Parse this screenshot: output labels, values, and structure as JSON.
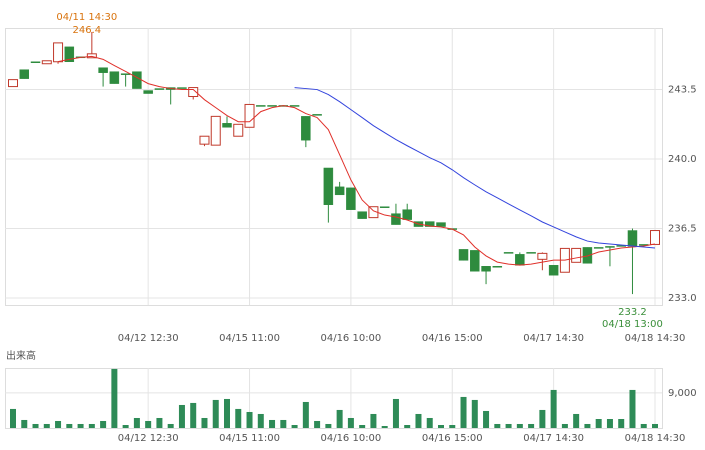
{
  "chart_data": [
    {
      "type": "candlestick",
      "categories": [
        null,
        null,
        null,
        null,
        null,
        null,
        null,
        null,
        null,
        null,
        null,
        null,
        "04/12 12:30",
        null,
        null,
        null,
        null,
        null,
        null,
        null,
        null,
        "04/15 11:00",
        null,
        null,
        null,
        null,
        null,
        null,
        null,
        null,
        "04/16 10:00",
        null,
        null,
        null,
        null,
        null,
        null,
        null,
        null,
        "04/16 15:00",
        null,
        null,
        null,
        null,
        null,
        null,
        null,
        null,
        "04/17 14:30",
        null,
        null,
        null,
        null,
        null,
        null,
        null,
        null,
        "04/18 14:30"
      ],
      "open": [
        243.65,
        244.5,
        244.9,
        244.8,
        244.9,
        245.65,
        245.15,
        245.1,
        244.6,
        244.4,
        244.3,
        244.4,
        243.45,
        243.55,
        243.6,
        243.6,
        243.15,
        240.75,
        240.7,
        241.8,
        241.15,
        241.6,
        242.7,
        242.7,
        242.7,
        242.7,
        242.15,
        242.25,
        239.55,
        238.6,
        238.55,
        237.35,
        237.05,
        237.6,
        237.25,
        237.45,
        236.85,
        236.85,
        236.8,
        236.5,
        235.45,
        235.4,
        234.6,
        234.6,
        235.3,
        235.2,
        235.3,
        234.95,
        234.65,
        234.3,
        234.8,
        235.55,
        235.55,
        235.6,
        235.65,
        236.4,
        235.7,
        235.7
      ],
      "high": [
        244.0,
        244.5,
        244.9,
        244.95,
        245.85,
        245.65,
        245.15,
        246.4,
        244.6,
        244.4,
        244.3,
        244.4,
        243.45,
        243.55,
        243.6,
        243.6,
        243.6,
        241.15,
        242.15,
        242.15,
        241.75,
        242.75,
        242.7,
        242.7,
        242.7,
        242.7,
        242.15,
        242.25,
        239.55,
        238.85,
        238.55,
        237.35,
        237.6,
        237.6,
        237.75,
        237.75,
        236.85,
        236.85,
        236.8,
        236.5,
        235.45,
        235.4,
        234.6,
        234.6,
        235.3,
        235.3,
        235.3,
        235.3,
        234.65,
        235.5,
        235.5,
        235.55,
        235.55,
        235.6,
        235.65,
        236.5,
        235.7,
        236.4
      ],
      "low": [
        243.65,
        244.05,
        244.9,
        244.8,
        244.8,
        244.9,
        245.15,
        245.1,
        243.65,
        243.8,
        243.65,
        243.55,
        243.3,
        243.55,
        242.75,
        243.6,
        243.0,
        240.65,
        240.7,
        241.6,
        241.15,
        241.6,
        242.7,
        242.7,
        242.7,
        242.7,
        240.6,
        242.25,
        236.8,
        238.2,
        237.45,
        237.0,
        237.05,
        237.6,
        236.7,
        236.95,
        236.6,
        236.6,
        236.6,
        236.5,
        234.9,
        234.35,
        233.7,
        234.6,
        235.3,
        234.65,
        235.3,
        234.4,
        234.15,
        234.3,
        234.8,
        234.75,
        235.55,
        234.6,
        235.65,
        233.2,
        235.7,
        235.7
      ],
      "close": [
        244.0,
        244.05,
        244.9,
        244.95,
        245.85,
        244.9,
        245.15,
        245.3,
        244.35,
        243.8,
        244.3,
        243.55,
        243.3,
        243.55,
        243.5,
        243.6,
        243.6,
        241.15,
        242.15,
        241.6,
        241.75,
        242.75,
        242.7,
        242.7,
        242.7,
        242.7,
        240.95,
        242.25,
        237.7,
        238.2,
        237.45,
        237.0,
        237.6,
        237.6,
        236.7,
        236.95,
        236.6,
        236.6,
        236.6,
        236.5,
        234.9,
        234.35,
        234.35,
        234.6,
        235.3,
        234.65,
        235.3,
        235.25,
        234.15,
        235.5,
        235.5,
        234.75,
        235.55,
        235.6,
        235.65,
        235.6,
        235.7,
        236.4
      ],
      "up_color": "#c0392b",
      "down_color": "#2e8b3e",
      "series": [
        {
          "color": "#e0302a",
          "values": [
            null,
            null,
            null,
            null,
            244.91,
            245.02,
            245.12,
            245.17,
            245.02,
            244.71,
            244.41,
            244.11,
            243.8,
            243.65,
            243.55,
            243.5,
            243.5,
            242.99,
            242.59,
            242.19,
            241.88,
            241.88,
            242.39,
            242.59,
            242.69,
            242.59,
            242.29,
            242.09,
            241.48,
            240.22,
            238.95,
            237.94,
            237.39,
            237.18,
            237.08,
            236.93,
            236.73,
            236.63,
            236.58,
            236.47,
            236.18,
            235.57,
            235.12,
            234.81,
            234.71,
            234.66,
            234.71,
            234.81,
            234.91,
            234.91,
            235.02,
            235.12,
            235.32,
            235.42,
            235.52,
            235.57,
            235.62,
            235.72
          ]
        },
        {
          "color": "#3344dd",
          "values": [
            null,
            null,
            null,
            null,
            null,
            null,
            null,
            null,
            null,
            null,
            null,
            null,
            null,
            null,
            null,
            null,
            null,
            null,
            null,
            null,
            null,
            null,
            null,
            null,
            null,
            243.6,
            243.55,
            243.5,
            243.25,
            242.89,
            242.49,
            242.09,
            241.68,
            241.33,
            240.98,
            240.67,
            240.37,
            240.07,
            239.81,
            239.46,
            239.06,
            238.7,
            238.35,
            238.05,
            237.74,
            237.44,
            237.14,
            236.83,
            236.58,
            236.33,
            236.08,
            235.87,
            235.77,
            235.72,
            235.67,
            235.62,
            235.57,
            235.52
          ]
        }
      ],
      "high_label": {
        "time": "04/11 14:30",
        "value": 246.4
      },
      "low_label": {
        "time": "04/18 13:00",
        "value": 233.2
      },
      "ylim": [
        232.65,
        246.6
      ],
      "yticks": [
        {
          "value": 233,
          "label": "233.0"
        },
        236.5,
        {
          "value": 240,
          "label": "240.0"
        },
        243.5
      ],
      "grid": true
    },
    {
      "type": "bar",
      "title": "出来高",
      "color": "#2e8b57",
      "categories": [
        null,
        null,
        null,
        null,
        null,
        null,
        null,
        null,
        null,
        null,
        null,
        null,
        "04/12 12:30",
        null,
        null,
        null,
        null,
        null,
        null,
        null,
        null,
        "04/15 11:00",
        null,
        null,
        null,
        null,
        null,
        null,
        null,
        null,
        "04/16 10:00",
        null,
        null,
        null,
        null,
        null,
        null,
        null,
        null,
        "04/16 15:00",
        null,
        null,
        null,
        null,
        null,
        null,
        null,
        null,
        "04/17 14:30",
        null,
        null,
        null,
        null,
        null,
        null,
        null,
        null,
        "04/18 14:30"
      ],
      "values": [
        4890,
        2060,
        1030,
        1030,
        1800,
        1030,
        1030,
        1030,
        1800,
        15160,
        770,
        2570,
        1800,
        2570,
        1030,
        5910,
        6430,
        2570,
        7200,
        7450,
        4890,
        4110,
        3600,
        2060,
        2060,
        770,
        6680,
        1800,
        1030,
        4630,
        2570,
        770,
        3600,
        510,
        7450,
        770,
        3600,
        2570,
        770,
        770,
        7970,
        7200,
        4370,
        1030,
        1030,
        1030,
        1030,
        4630,
        9770,
        1030,
        3600,
        1030,
        2310,
        2310,
        2310,
        9770,
        1030,
        1030
      ],
      "ylim": [
        0,
        15400
      ],
      "yticks": [
        {
          "value": 9000,
          "label": "9,000"
        }
      ],
      "grid": true
    }
  ]
}
